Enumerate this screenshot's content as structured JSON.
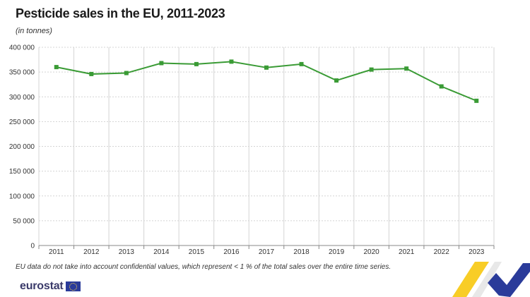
{
  "title": "Pesticide sales in the EU, 2011-2023",
  "subtitle": "(in tonnes)",
  "footnote": "EU data do not take into account confidential values, which represent < 1 % of the total sales over the entire time series.",
  "logo_text": "eurostat",
  "colors": {
    "line": "#3a9b35",
    "grid": "#d4d4d4",
    "axis": "#888888",
    "navy": "#2a3b9a",
    "yellow": "#f7c400"
  },
  "chart_data": {
    "type": "line",
    "title": "Pesticide sales in the EU, 2011-2023",
    "subtitle": "(in tonnes)",
    "categories": [
      "2011",
      "2012",
      "2013",
      "2014",
      "2015",
      "2016",
      "2017",
      "2018",
      "2019",
      "2020",
      "2021",
      "2022",
      "2023"
    ],
    "series": [
      {
        "values": [
          360000,
          346000,
          348000,
          368000,
          366000,
          371000,
          359000,
          366000,
          333000,
          355000,
          357000,
          321000,
          292000
        ]
      }
    ],
    "ylim": [
      0,
      400000
    ],
    "yticks": [
      0,
      50000,
      100000,
      150000,
      200000,
      250000,
      300000,
      350000,
      400000
    ],
    "ytick_labels": [
      "0",
      "50 000",
      "100 000",
      "150 000",
      "200 000",
      "250 000",
      "300 000",
      "350 000",
      "400 000"
    ],
    "grid": true,
    "legend": "none"
  }
}
